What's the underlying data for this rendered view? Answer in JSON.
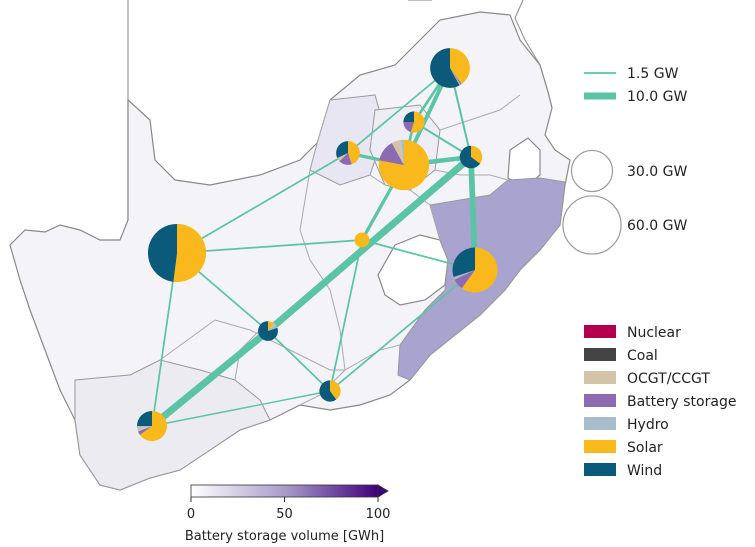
{
  "map": {
    "region_fill_scale": {
      "label": "Battery storage volume [GWh]",
      "ticks": [
        "0",
        "50",
        "100"
      ],
      "min": 0,
      "max": 100,
      "colors": [
        "#ffffff",
        "#4a1486"
      ]
    },
    "line_legend": [
      {
        "label": "1.5 GW",
        "capacity_gw": 1.5
      },
      {
        "label": "10.0 GW",
        "capacity_gw": 10.0
      }
    ],
    "size_legend": [
      {
        "label": "30.0 GW",
        "capacity_gw": 30.0
      },
      {
        "label": "60.0 GW",
        "capacity_gw": 60.0
      }
    ],
    "carriers": [
      {
        "key": "nuclear",
        "label": "Nuclear",
        "color": "#b5004e"
      },
      {
        "key": "coal",
        "label": "Coal",
        "color": "#444444"
      },
      {
        "key": "ocgt",
        "label": "OCGT/CCGT",
        "color": "#d3c4a8"
      },
      {
        "key": "battery",
        "label": "Battery storage",
        "color": "#8c6bb1"
      },
      {
        "key": "hydro",
        "label": "Hydro",
        "color": "#a7bccc"
      },
      {
        "key": "solar",
        "label": "Solar",
        "color": "#f9b81b"
      },
      {
        "key": "wind",
        "label": "Wind",
        "color": "#0b5a7a"
      }
    ],
    "line_color": "#5ac4a5",
    "nodes": [
      {
        "id": "limpopo",
        "total_gw": 28,
        "mix": {
          "solar": 0.4,
          "wind": 0.58,
          "battery": 0.01,
          "hydro": 0.01
        }
      },
      {
        "id": "mpumalanga_n",
        "total_gw": 8,
        "mix": {
          "solar": 0.55,
          "wind": 0.25,
          "battery": 0.2
        }
      },
      {
        "id": "northwest",
        "total_gw": 10,
        "mix": {
          "solar": 0.45,
          "wind": 0.32,
          "battery": 0.18,
          "ocgt": 0.05
        }
      },
      {
        "id": "gauteng",
        "total_gw": 45,
        "mix": {
          "solar": 0.78,
          "battery": 0.14,
          "ocgt": 0.06,
          "hydro": 0.02
        }
      },
      {
        "id": "mpumalanga",
        "total_gw": 9,
        "mix": {
          "solar": 0.35,
          "wind": 0.65
        }
      },
      {
        "id": "northern_cape",
        "total_gw": 60,
        "mix": {
          "solar": 0.52,
          "wind": 0.48
        }
      },
      {
        "id": "freestate",
        "total_gw": 4,
        "mix": {
          "solar": 1.0
        }
      },
      {
        "id": "kzn",
        "total_gw": 36,
        "mix": {
          "solar": 0.6,
          "wind": 0.3,
          "battery": 0.08,
          "hydro": 0.02
        }
      },
      {
        "id": "karoo",
        "total_gw": 7,
        "mix": {
          "wind": 0.8,
          "solar": 0.1,
          "ocgt": 0.05,
          "hydro": 0.05
        }
      },
      {
        "id": "eastern_cape",
        "total_gw": 8,
        "mix": {
          "solar": 0.4,
          "wind": 0.6
        }
      },
      {
        "id": "western_cape",
        "total_gw": 16,
        "mix": {
          "solar": 0.65,
          "wind": 0.25,
          "ocgt": 0.04,
          "battery": 0.04,
          "hydro": 0.02
        }
      }
    ],
    "lines": [
      {
        "from": "limpopo",
        "to": "gauteng",
        "capacity_gw": 5
      },
      {
        "from": "limpopo",
        "to": "mpumalanga_n",
        "capacity_gw": 3
      },
      {
        "from": "limpopo",
        "to": "northwest",
        "capacity_gw": 1.5
      },
      {
        "from": "limpopo",
        "to": "mpumalanga",
        "capacity_gw": 2
      },
      {
        "from": "mpumalanga_n",
        "to": "gauteng",
        "capacity_gw": 3
      },
      {
        "from": "mpumalanga_n",
        "to": "mpumalanga",
        "capacity_gw": 2
      },
      {
        "from": "northwest",
        "to": "gauteng",
        "capacity_gw": 4
      },
      {
        "from": "northwest",
        "to": "northern_cape",
        "capacity_gw": 1.5
      },
      {
        "from": "gauteng",
        "to": "mpumalanga",
        "capacity_gw": 6
      },
      {
        "from": "gauteng",
        "to": "freestate",
        "capacity_gw": 4
      },
      {
        "from": "mpumalanga",
        "to": "kzn",
        "capacity_gw": 8
      },
      {
        "from": "mpumalanga",
        "to": "karoo",
        "capacity_gw": 10
      },
      {
        "from": "freestate",
        "to": "kzn",
        "capacity_gw": 1.5
      },
      {
        "from": "freestate",
        "to": "northern_cape",
        "capacity_gw": 1.5
      },
      {
        "from": "freestate",
        "to": "eastern_cape",
        "capacity_gw": 1.5
      },
      {
        "from": "karoo",
        "to": "western_cape",
        "capacity_gw": 10
      },
      {
        "from": "karoo",
        "to": "northern_cape",
        "capacity_gw": 1.5
      },
      {
        "from": "karoo",
        "to": "eastern_cape",
        "capacity_gw": 1.5
      },
      {
        "from": "northern_cape",
        "to": "western_cape",
        "capacity_gw": 1.5
      },
      {
        "from": "eastern_cape",
        "to": "kzn",
        "capacity_gw": 1.5
      },
      {
        "from": "western_cape",
        "to": "eastern_cape",
        "capacity_gw": 1.0
      }
    ]
  }
}
